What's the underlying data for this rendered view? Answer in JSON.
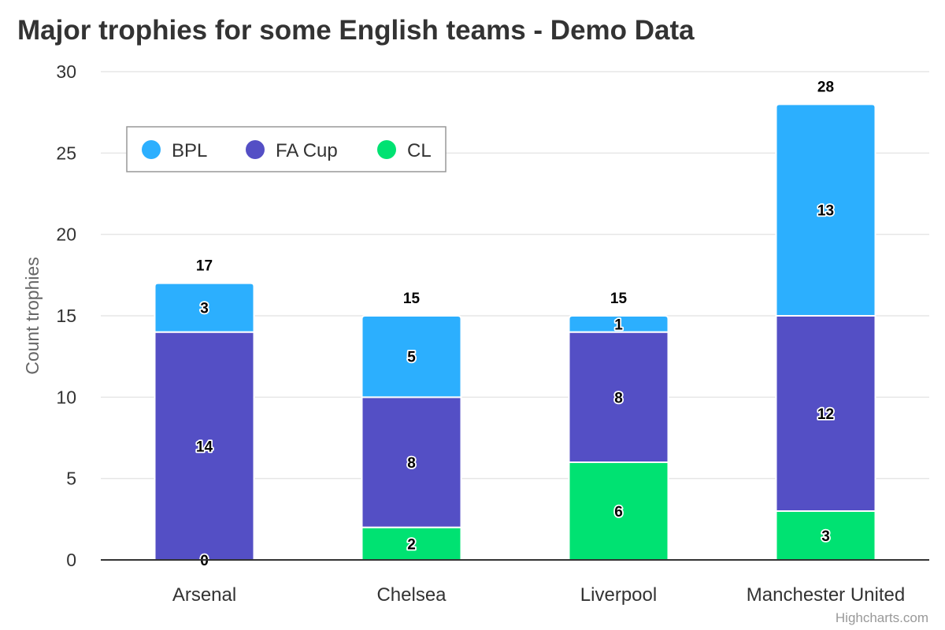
{
  "chart_data": {
    "type": "bar",
    "stacked": true,
    "title": "Major trophies for some English teams - Demo Data",
    "ylabel": "Count trophies",
    "xlabel": "",
    "categories": [
      "Arsenal",
      "Chelsea",
      "Liverpool",
      "Manchester United"
    ],
    "series": [
      {
        "name": "BPL",
        "color": "#2caffe",
        "values": [
          3,
          5,
          1,
          13
        ]
      },
      {
        "name": "FA Cup",
        "color": "#544fc5",
        "values": [
          14,
          8,
          8,
          12
        ]
      },
      {
        "name": "CL",
        "color": "#00e272",
        "values": [
          0,
          2,
          6,
          3
        ]
      }
    ],
    "totals": [
      17,
      15,
      15,
      28
    ],
    "ylim": [
      0,
      30
    ],
    "yticks": [
      0,
      5,
      10,
      15,
      20,
      25,
      30
    ],
    "grid": true,
    "legend_position": "top-left"
  },
  "credits": "Highcharts.com"
}
